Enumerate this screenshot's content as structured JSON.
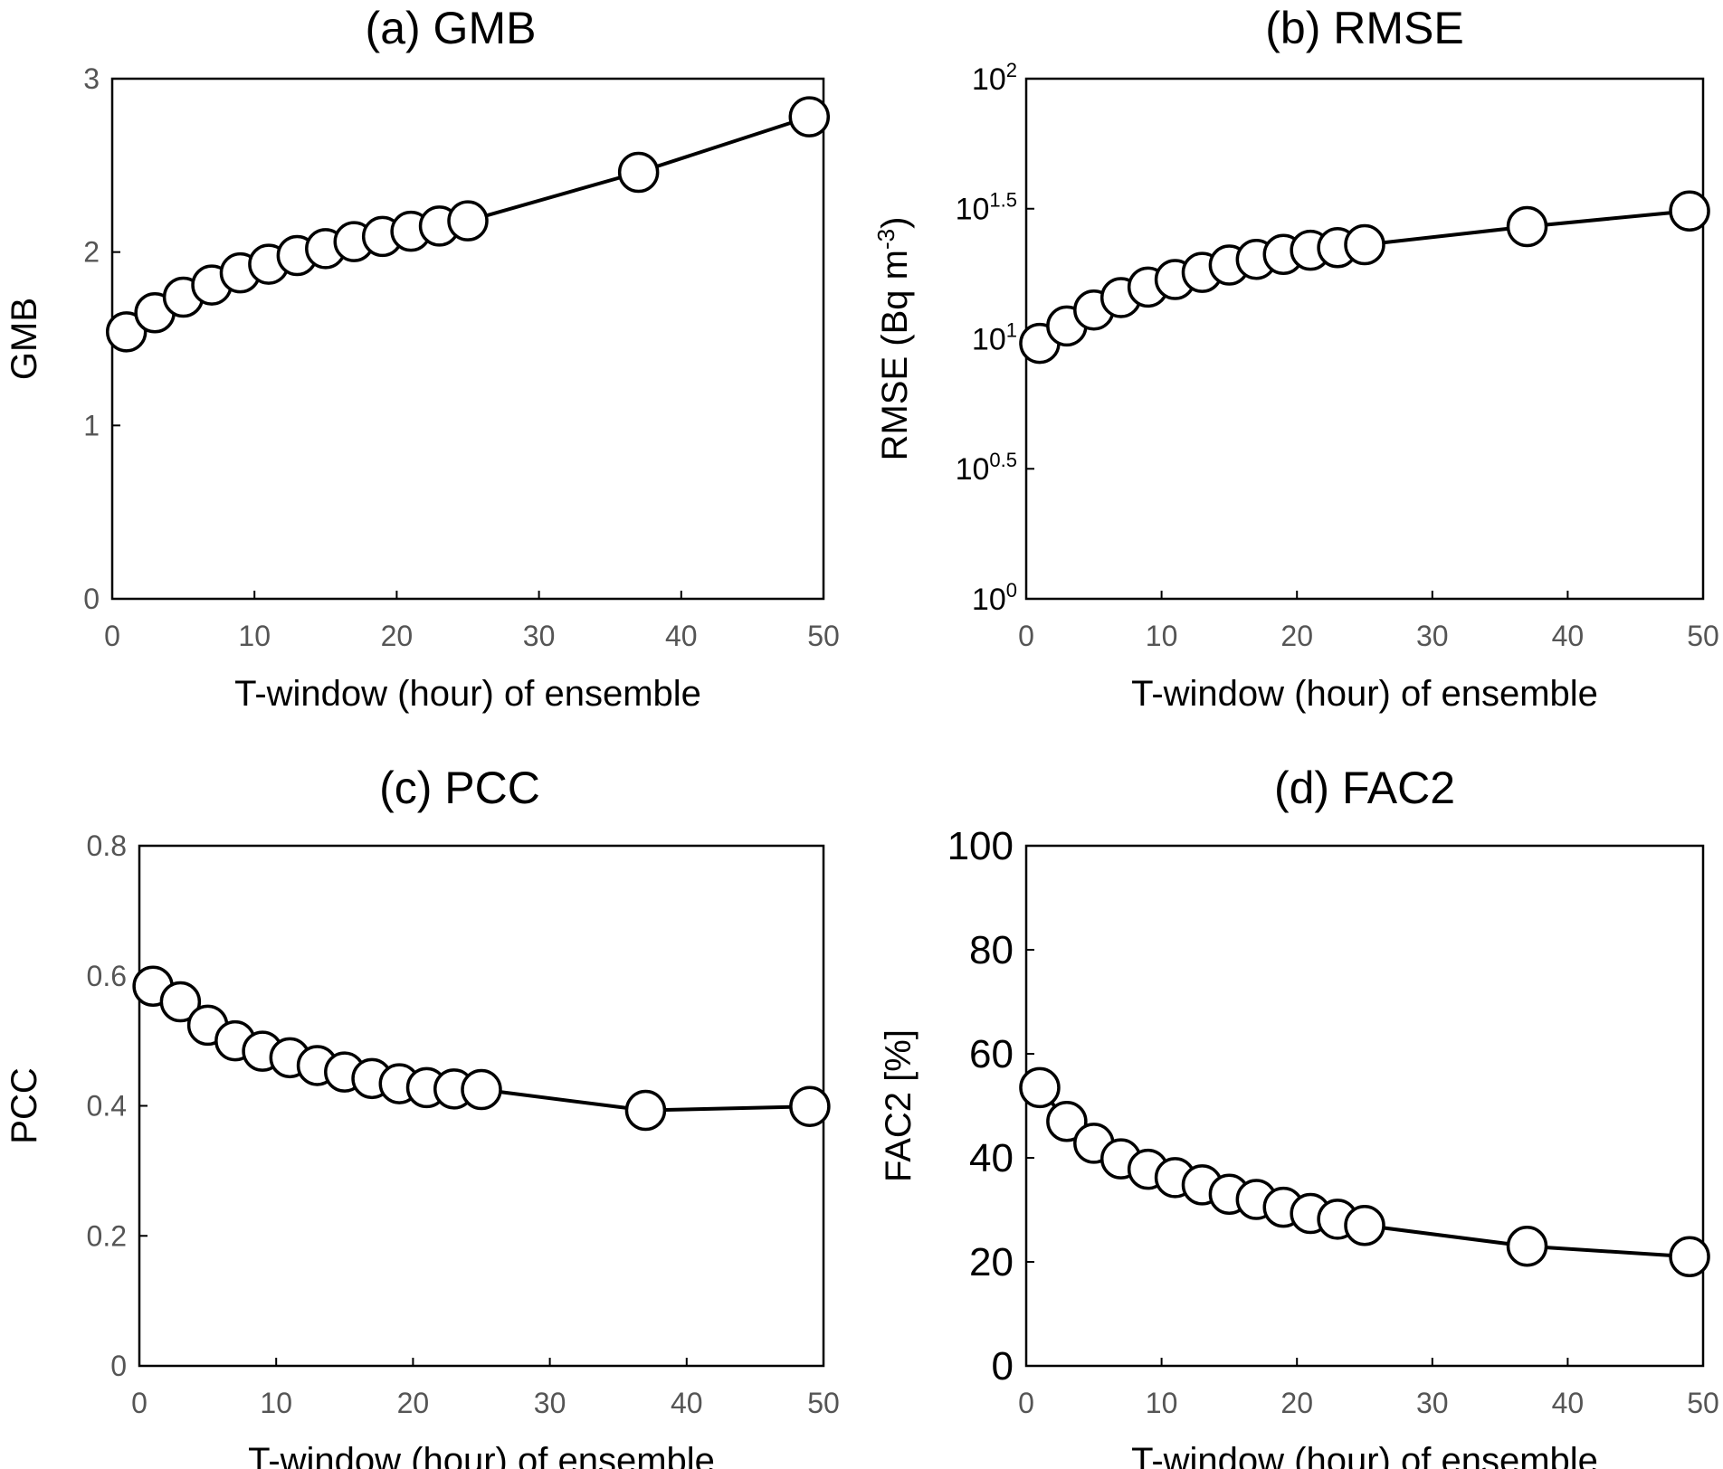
{
  "chart_data": [
    {
      "id": "a",
      "type": "line",
      "title": "(a) GMB",
      "xlabel": "T-window (hour) of ensemble",
      "ylabel": "GMB",
      "yscale": "linear",
      "xlim": [
        0,
        50
      ],
      "ylim": [
        0,
        3
      ],
      "xticks": [
        0,
        10,
        20,
        30,
        40,
        50
      ],
      "yticks": [
        0,
        1,
        2,
        3
      ],
      "xticklabels": [
        "0",
        "10",
        "20",
        "30",
        "40",
        "50"
      ],
      "yticklabels": [
        "0",
        "1",
        "2",
        "3"
      ],
      "x": [
        1,
        3,
        5,
        7,
        9,
        11,
        13,
        15,
        17,
        19,
        21,
        23,
        25,
        37,
        49
      ],
      "series": [
        {
          "values": [
            1.54,
            1.65,
            1.74,
            1.81,
            1.88,
            1.93,
            1.98,
            2.02,
            2.06,
            2.09,
            2.12,
            2.15,
            2.18,
            2.46,
            2.78
          ]
        }
      ]
    },
    {
      "id": "b",
      "type": "line",
      "title": "(b) RMSE",
      "xlabel": "T-window (hour) of ensemble",
      "ylabel": "RMSE (Bq m-3)",
      "ylabel_base": "RMSE (Bq m",
      "ylabel_sup": "-3",
      "ylabel_end": ")",
      "yscale": "log",
      "xlim": [
        0,
        50
      ],
      "ylim": [
        1,
        100
      ],
      "xticks": [
        0,
        10,
        20,
        30,
        40,
        50
      ],
      "xticklabels": [
        "0",
        "10",
        "20",
        "30",
        "40",
        "50"
      ],
      "yticks": [
        1,
        3.1623,
        10,
        31.623,
        100
      ],
      "yticklabels": [
        {
          "base": "10",
          "exp": "0"
        },
        {
          "base": "10",
          "exp": "0.5"
        },
        {
          "base": "10",
          "exp": "1"
        },
        {
          "base": "10",
          "exp": "1.5"
        },
        {
          "base": "10",
          "exp": "2"
        }
      ],
      "x": [
        1,
        3,
        5,
        7,
        9,
        11,
        13,
        15,
        17,
        19,
        21,
        23,
        25,
        37,
        49
      ],
      "series": [
        {
          "values": [
            9.6,
            11.2,
            12.9,
            14.4,
            15.8,
            16.9,
            18.0,
            19.2,
            20.2,
            21.1,
            21.9,
            22.4,
            23.0,
            27.0,
            31.0
          ]
        }
      ]
    },
    {
      "id": "c",
      "type": "line",
      "title": "(c) PCC",
      "xlabel": "T-window (hour) of ensemble",
      "ylabel": "PCC",
      "yscale": "linear",
      "xlim": [
        0,
        50
      ],
      "ylim": [
        0,
        0.8
      ],
      "xticks": [
        0,
        10,
        20,
        30,
        40,
        50
      ],
      "yticks": [
        0,
        0.2,
        0.4,
        0.6,
        0.8
      ],
      "xticklabels": [
        "0",
        "10",
        "20",
        "30",
        "40",
        "50"
      ],
      "yticklabels": [
        "0",
        "0.2",
        "0.4",
        "0.6",
        "0.8"
      ],
      "x": [
        1,
        3,
        5,
        7,
        9,
        11,
        13,
        15,
        17,
        19,
        21,
        23,
        25,
        37,
        49
      ],
      "series": [
        {
          "values": [
            0.584,
            0.56,
            0.524,
            0.5,
            0.484,
            0.474,
            0.462,
            0.452,
            0.442,
            0.434,
            0.428,
            0.426,
            0.425,
            0.393,
            0.399
          ]
        }
      ]
    },
    {
      "id": "d",
      "type": "line",
      "title": "(d) FAC2",
      "xlabel": "T-window (hour) of ensemble",
      "ylabel": "FAC2 [%]",
      "yscale": "linear",
      "xlim": [
        0,
        50
      ],
      "ylim": [
        0,
        100
      ],
      "xticks": [
        0,
        10,
        20,
        30,
        40,
        50
      ],
      "yticks": [
        0,
        20,
        40,
        60,
        80,
        100
      ],
      "xticklabels": [
        "0",
        "10",
        "20",
        "30",
        "40",
        "50"
      ],
      "yticklabels": [
        "0",
        "20",
        "40",
        "60",
        "80",
        "100"
      ],
      "x": [
        1,
        3,
        5,
        7,
        9,
        11,
        13,
        15,
        17,
        19,
        21,
        23,
        25,
        37,
        49
      ],
      "series": [
        {
          "values": [
            53.5,
            47.0,
            42.8,
            39.8,
            37.8,
            36.2,
            34.8,
            33.0,
            32.0,
            30.5,
            29.3,
            28.2,
            27.0,
            23.0,
            21.0
          ]
        }
      ]
    }
  ]
}
